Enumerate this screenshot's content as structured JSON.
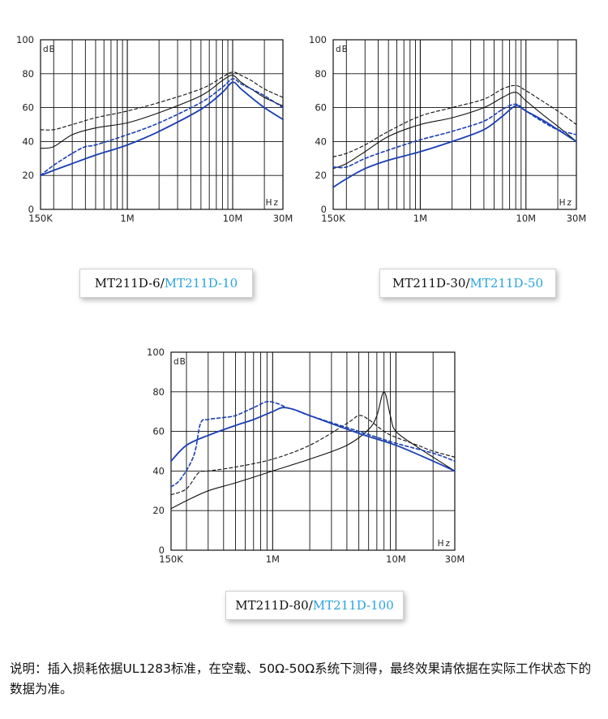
{
  "charts": [
    {
      "legend": {
        "black": "MT211D-6",
        "sep": "/",
        "blue": "MT211D-10"
      }
    },
    {
      "legend": {
        "black": "MT211D-30",
        "sep": "/",
        "blue": "MT211D-50"
      }
    },
    {
      "legend": {
        "black": "MT211D-80",
        "sep": "/",
        "blue": "MT211D-100"
      }
    }
  ],
  "note": "说明：插入损耗依据UL1283标准，在空载、50Ω-50Ω系统下测得，最终效果请依据在实际工作状态下的数据为准。",
  "colors": {
    "black_series": "#111111",
    "blue_series": "#1a3fb4",
    "grid": "#111111"
  },
  "chart_data": [
    {
      "type": "line",
      "x_scale": "log",
      "xlim": [
        150000,
        30000000
      ],
      "ylim": [
        0,
        100
      ],
      "y_ticks": [
        0,
        20,
        40,
        60,
        80,
        100
      ],
      "x_ticks": [
        150000,
        1000000,
        10000000,
        30000000
      ],
      "x_tick_labels": [
        "150K",
        "1M",
        "10M",
        "30M"
      ],
      "ylabel": "dB",
      "xlabel": "Hz",
      "series": [
        {
          "name": "MT211D-6",
          "color": "#111111",
          "dash": "solid",
          "x": [
            150000,
            200000,
            300000,
            500000,
            1000000,
            2000000,
            5000000,
            8000000,
            10000000,
            12000000,
            15000000,
            20000000,
            30000000
          ],
          "y": [
            36,
            37,
            44,
            48,
            51,
            57,
            67,
            76,
            79,
            75,
            71,
            66,
            61
          ]
        },
        {
          "name": "MT211D-6",
          "color": "#111111",
          "dash": "dashed",
          "x": [
            150000,
            200000,
            300000,
            500000,
            1000000,
            2000000,
            5000000,
            8000000,
            10000000,
            12000000,
            15000000,
            20000000,
            30000000
          ],
          "y": [
            47,
            47,
            50,
            54,
            58,
            63,
            71,
            78,
            81,
            79,
            76,
            71,
            66
          ]
        },
        {
          "name": "MT211D-10",
          "color": "#1a3fb4",
          "dash": "solid",
          "x": [
            150000,
            200000,
            300000,
            500000,
            1000000,
            2000000,
            5000000,
            8000000,
            10000000,
            12000000,
            15000000,
            20000000,
            30000000
          ],
          "y": [
            20,
            23,
            27,
            32,
            38,
            46,
            59,
            69,
            75,
            71,
            66,
            60,
            53
          ]
        },
        {
          "name": "MT211D-10",
          "color": "#1a3fb4",
          "dash": "dashed",
          "x": [
            150000,
            200000,
            300000,
            400000,
            500000,
            1000000,
            2000000,
            5000000,
            8000000,
            10000000,
            12000000,
            15000000,
            20000000,
            30000000
          ],
          "y": [
            20,
            26,
            33,
            37,
            38,
            44,
            51,
            63,
            72,
            77,
            74,
            71,
            67,
            60
          ]
        }
      ]
    },
    {
      "type": "line",
      "x_scale": "log",
      "xlim": [
        150000,
        30000000
      ],
      "ylim": [
        0,
        100
      ],
      "y_ticks": [
        0,
        20,
        40,
        60,
        80,
        100
      ],
      "x_ticks": [
        150000,
        1000000,
        10000000,
        30000000
      ],
      "x_tick_labels": [
        "150K",
        "1M",
        "10M",
        "30M"
      ],
      "ylabel": "dB",
      "xlabel": "Hz",
      "series": [
        {
          "name": "MT211D-30",
          "color": "#111111",
          "dash": "solid",
          "x": [
            150000,
            200000,
            300000,
            500000,
            1000000,
            2000000,
            4000000,
            6000000,
            8000000,
            10000000,
            15000000,
            20000000,
            30000000
          ],
          "y": [
            24,
            27,
            34,
            43,
            50,
            54,
            60,
            66,
            69,
            64,
            55,
            49,
            40
          ]
        },
        {
          "name": "MT211D-30",
          "color": "#111111",
          "dash": "dashed",
          "x": [
            150000,
            200000,
            300000,
            500000,
            1000000,
            2000000,
            4000000,
            6000000,
            8000000,
            10000000,
            15000000,
            20000000,
            30000000
          ],
          "y": [
            31,
            33,
            38,
            46,
            55,
            60,
            65,
            71,
            73,
            70,
            63,
            58,
            50
          ]
        },
        {
          "name": "MT211D-50",
          "color": "#1a3fb4",
          "dash": "solid",
          "x": [
            150000,
            200000,
            300000,
            500000,
            1000000,
            2000000,
            4000000,
            6000000,
            8000000,
            10000000,
            15000000,
            20000000,
            30000000
          ],
          "y": [
            13,
            18,
            24,
            29,
            34,
            40,
            47,
            55,
            61,
            58,
            52,
            47,
            40
          ]
        },
        {
          "name": "MT211D-50",
          "color": "#1a3fb4",
          "dash": "dashed",
          "x": [
            150000,
            200000,
            300000,
            500000,
            1000000,
            2000000,
            4000000,
            6000000,
            8000000,
            10000000,
            15000000,
            20000000,
            30000000
          ],
          "y": [
            25,
            25,
            30,
            35,
            41,
            46,
            52,
            59,
            62,
            58,
            51,
            47,
            44
          ]
        }
      ]
    },
    {
      "type": "line",
      "x_scale": "log",
      "xlim": [
        150000,
        30000000
      ],
      "ylim": [
        0,
        100
      ],
      "y_ticks": [
        0,
        20,
        40,
        60,
        80,
        100
      ],
      "x_ticks": [
        150000,
        1000000,
        10000000,
        30000000
      ],
      "x_tick_labels": [
        "150K",
        "1M",
        "10M",
        "30M"
      ],
      "ylabel": "dB",
      "xlabel": "Hz",
      "series": [
        {
          "name": "MT211D-80",
          "color": "#111111",
          "dash": "solid",
          "x": [
            150000,
            200000,
            300000,
            500000,
            1000000,
            2000000,
            4000000,
            6000000,
            7000000,
            8000000,
            9000000,
            10000000,
            15000000,
            20000000,
            30000000
          ],
          "y": [
            21,
            25,
            30,
            34,
            40,
            46,
            53,
            61,
            68,
            80,
            68,
            60,
            52,
            47,
            40
          ]
        },
        {
          "name": "MT211D-80",
          "color": "#111111",
          "dash": "dashed",
          "x": [
            150000,
            200000,
            250000,
            300000,
            500000,
            1000000,
            2000000,
            4000000,
            5000000,
            6000000,
            8000000,
            10000000,
            15000000,
            20000000,
            30000000
          ],
          "y": [
            28,
            31,
            39,
            40,
            42,
            46,
            53,
            64,
            68,
            66,
            60,
            57,
            53,
            50,
            47
          ]
        },
        {
          "name": "MT211D-100",
          "color": "#1a3fb4",
          "dash": "solid",
          "x": [
            150000,
            200000,
            300000,
            500000,
            700000,
            1000000,
            1200000,
            1500000,
            2000000,
            5000000,
            10000000,
            20000000,
            30000000
          ],
          "y": [
            45,
            53,
            58,
            63,
            66,
            70,
            72,
            71,
            68,
            59,
            53,
            45,
            40
          ]
        },
        {
          "name": "MT211D-100",
          "color": "#1a3fb4",
          "dash": "dashed",
          "x": [
            150000,
            180000,
            230000,
            260000,
            300000,
            400000,
            500000,
            700000,
            900000,
            1100000,
            1300000,
            1500000,
            2000000,
            5000000,
            10000000,
            20000000,
            30000000
          ],
          "y": [
            32,
            36,
            48,
            64,
            66,
            67,
            68,
            72,
            75,
            74,
            72,
            71,
            68,
            60,
            54,
            49,
            45
          ]
        }
      ]
    }
  ]
}
